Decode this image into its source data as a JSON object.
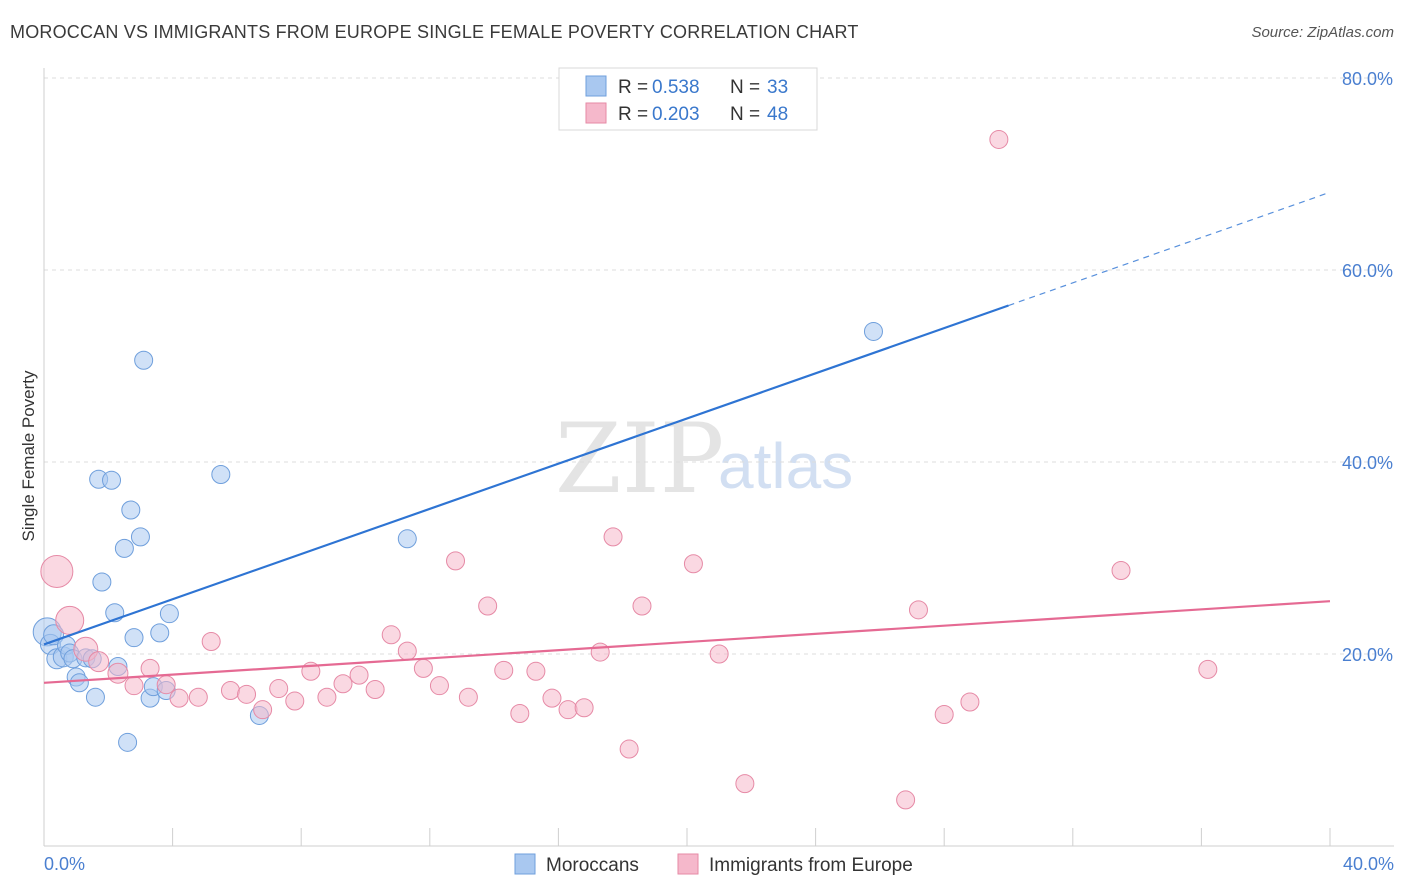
{
  "header": {
    "title": "MOROCCAN VS IMMIGRANTS FROM EUROPE SINGLE FEMALE POVERTY CORRELATION CHART",
    "source": "Source: ZipAtlas.com"
  },
  "watermark": {
    "zip": "ZIP",
    "atlas": "atlas"
  },
  "legend": {
    "rows": [
      {
        "r_label": "R =",
        "r_value": "0.538",
        "n_label": "N =",
        "n_value": "33",
        "color": "#a9c8f0"
      },
      {
        "r_label": "R =",
        "r_value": "0.203",
        "n_label": "N =",
        "n_value": "48",
        "color": "#f5b8cb"
      }
    ]
  },
  "chart_data": {
    "type": "scatter",
    "title": "MOROCCAN VS IMMIGRANTS FROM EUROPE SINGLE FEMALE POVERTY CORRELATION CHART",
    "xlabel": "",
    "ylabel": "Single Female Poverty",
    "xlim": [
      0,
      40
    ],
    "ylim": [
      0,
      80
    ],
    "x_tick_labels": [
      "0.0%",
      "40.0%"
    ],
    "y_ticks": [
      20,
      40,
      60,
      80
    ],
    "y_tick_labels": [
      "20.0%",
      "40.0%",
      "60.0%",
      "80.0%"
    ],
    "grid": true,
    "series": [
      {
        "name": "Moroccans",
        "color": "#a9c8f0",
        "stroke": "#6f9fdc",
        "trend_color": "#2e74d3",
        "trend": {
          "x0": 0,
          "y0": 21.0,
          "x1": 30,
          "y1": 56.3,
          "extend_to_x": 40,
          "extend_to_y": 68.1
        },
        "points": [
          [
            0.1,
            22.3
          ],
          [
            0.2,
            21.0
          ],
          [
            0.3,
            22.0
          ],
          [
            0.4,
            19.5
          ],
          [
            0.6,
            19.7
          ],
          [
            0.7,
            20.9
          ],
          [
            0.8,
            20.1
          ],
          [
            0.9,
            19.5
          ],
          [
            1.0,
            17.6
          ],
          [
            1.1,
            17.0
          ],
          [
            1.3,
            19.6
          ],
          [
            1.5,
            19.5
          ],
          [
            1.6,
            15.5
          ],
          [
            1.7,
            38.2
          ],
          [
            1.8,
            27.5
          ],
          [
            2.1,
            38.1
          ],
          [
            2.2,
            24.3
          ],
          [
            2.3,
            18.7
          ],
          [
            2.5,
            31.0
          ],
          [
            2.6,
            10.8
          ],
          [
            2.7,
            35.0
          ],
          [
            2.8,
            21.7
          ],
          [
            3.0,
            32.2
          ],
          [
            3.1,
            50.6
          ],
          [
            3.3,
            15.4
          ],
          [
            3.4,
            16.6
          ],
          [
            3.6,
            22.2
          ],
          [
            3.8,
            16.2
          ],
          [
            3.9,
            24.2
          ],
          [
            5.5,
            38.7
          ],
          [
            6.7,
            13.6
          ],
          [
            11.3,
            32.0
          ],
          [
            25.8,
            53.6
          ]
        ],
        "point_sizes": [
          14,
          10,
          10,
          10,
          10,
          9,
          9,
          9,
          9,
          9,
          9,
          9,
          9,
          9,
          9,
          9,
          9,
          9,
          9,
          9,
          9,
          9,
          9,
          9,
          9,
          9,
          9,
          9,
          9,
          9,
          9,
          9,
          9
        ]
      },
      {
        "name": "Immigrants from Europe",
        "color": "#f5b8cb",
        "stroke": "#e68aa6",
        "trend_color": "#e56a93",
        "trend": {
          "x0": 0,
          "y0": 17.0,
          "x1": 40,
          "y1": 25.5,
          "extend_to_x": 40,
          "extend_to_y": 25.5
        },
        "points": [
          [
            0.4,
            28.6
          ],
          [
            0.8,
            23.5
          ],
          [
            1.3,
            20.5
          ],
          [
            1.7,
            19.2
          ],
          [
            2.3,
            18.0
          ],
          [
            2.8,
            16.7
          ],
          [
            3.3,
            18.5
          ],
          [
            3.8,
            16.8
          ],
          [
            4.2,
            15.4
          ],
          [
            4.8,
            15.5
          ],
          [
            5.2,
            21.3
          ],
          [
            5.8,
            16.2
          ],
          [
            6.3,
            15.8
          ],
          [
            6.8,
            14.2
          ],
          [
            7.3,
            16.4
          ],
          [
            7.8,
            15.1
          ],
          [
            8.3,
            18.2
          ],
          [
            8.8,
            15.5
          ],
          [
            9.3,
            16.9
          ],
          [
            9.8,
            17.8
          ],
          [
            10.3,
            16.3
          ],
          [
            10.8,
            22.0
          ],
          [
            11.3,
            20.3
          ],
          [
            11.8,
            18.5
          ],
          [
            12.3,
            16.7
          ],
          [
            12.8,
            29.7
          ],
          [
            13.2,
            15.5
          ],
          [
            13.8,
            25.0
          ],
          [
            14.3,
            18.3
          ],
          [
            14.8,
            13.8
          ],
          [
            15.3,
            18.2
          ],
          [
            15.8,
            15.4
          ],
          [
            16.3,
            14.2
          ],
          [
            16.8,
            14.4
          ],
          [
            17.3,
            20.2
          ],
          [
            17.7,
            32.2
          ],
          [
            18.2,
            10.1
          ],
          [
            18.6,
            25.0
          ],
          [
            20.2,
            29.4
          ],
          [
            21.0,
            20.0
          ],
          [
            21.8,
            6.5
          ],
          [
            26.8,
            4.8
          ],
          [
            27.2,
            24.6
          ],
          [
            28.0,
            13.7
          ],
          [
            28.8,
            15.0
          ],
          [
            29.7,
            73.6
          ],
          [
            33.5,
            28.7
          ],
          [
            36.2,
            18.4
          ]
        ],
        "point_sizes": [
          16,
          14,
          12,
          10,
          10,
          9,
          9,
          9,
          9,
          9,
          9,
          9,
          9,
          9,
          9,
          9,
          9,
          9,
          9,
          9,
          9,
          9,
          9,
          9,
          9,
          9,
          9,
          9,
          9,
          9,
          9,
          9,
          9,
          9,
          9,
          9,
          9,
          9,
          9,
          9,
          9,
          9,
          9,
          9,
          9,
          9,
          9,
          9
        ]
      }
    ]
  }
}
